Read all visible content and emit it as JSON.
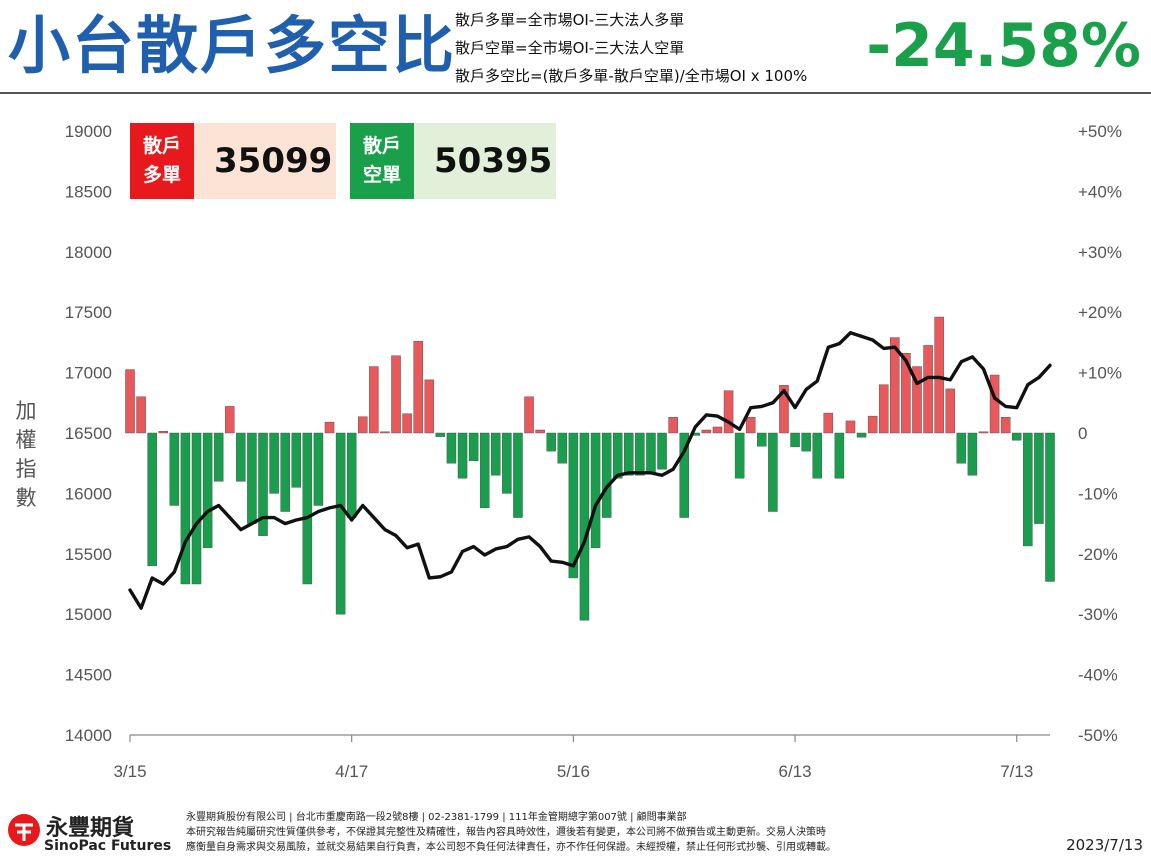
{
  "header": {
    "title": "小台散戶多空比",
    "definitions": [
      "散戶多單=全市場OI-三大法人多單",
      "散戶空單=全市場OI-三大法人空單",
      "散戶多空比=(散戶多單-散戶空單)/全市場OI x 100%"
    ],
    "ratio_value": "-24.58%"
  },
  "summary": {
    "long_label_1": "散戶",
    "long_label_2": "多單",
    "long_value": "35099",
    "short_label_1": "散戶",
    "short_label_2": "空單",
    "short_value": "50395"
  },
  "colors": {
    "title": "#1f5fae",
    "ratio": "#1aa04a",
    "long_tag": "#e8191c",
    "long_bg": "#fbe3d6",
    "short_tag": "#1aa04a",
    "short_bg": "#e2f0d9",
    "bar_positive": "#e8595b",
    "bar_negative": "#1a9e4e",
    "line": "#111111"
  },
  "chart_data": {
    "type": "bar+line",
    "ylabel": "加權指數",
    "x_ticks": [
      "3/15",
      "4/17",
      "5/16",
      "6/13",
      "7/13"
    ],
    "x_tick_index": [
      0,
      20,
      40,
      60,
      80
    ],
    "y_left": {
      "min": 14000,
      "max": 19000,
      "ticks": [
        "19000",
        "18500",
        "18000",
        "17500",
        "17000",
        "16500",
        "16000",
        "15500",
        "15000",
        "14500",
        "14000"
      ]
    },
    "y_right": {
      "min": -50,
      "max": 50,
      "ticks": [
        "+50%",
        "+40%",
        "+30%",
        "+20%",
        "+10%",
        "0",
        "-10%",
        "-20%",
        "-30%",
        "-40%",
        "-50%"
      ]
    },
    "series": [
      {
        "type": "bar",
        "axis": "right",
        "values": [
          10.5,
          6,
          -22,
          0.3,
          -12,
          -25,
          -25,
          -19,
          -8,
          4.4,
          -8,
          -15,
          -17,
          -10,
          -13,
          -9,
          -25,
          -12,
          1.8,
          -30,
          -14,
          2.7,
          11,
          0.2,
          12.8,
          3.2,
          15.2,
          8.8,
          -0.6,
          -5,
          -7.5,
          -4.6,
          -12.4,
          -7,
          -10,
          -14,
          6,
          0.5,
          -3,
          -5,
          -24,
          -31,
          -19,
          -14,
          -7.5,
          -7,
          -7,
          -6.5,
          -6,
          2.6,
          -14,
          -0.4,
          0.5,
          1,
          7,
          -7.5,
          2.6,
          -2.2,
          -13,
          7.9,
          -2.3,
          -3,
          -7.5,
          3.3,
          -7.5,
          2,
          -0.7,
          2.8,
          8,
          15.8,
          13.2,
          11,
          14.5,
          19.2,
          7.3,
          -5,
          -7,
          0.2,
          9.6,
          2.6,
          -1.2,
          -18.7,
          -15,
          -24.58
        ]
      },
      {
        "type": "line",
        "axis": "left",
        "values": [
          15200,
          15050,
          15300,
          15250,
          15350,
          15600,
          15750,
          15850,
          15900,
          15800,
          15700,
          15750,
          15800,
          15800,
          15750,
          15780,
          15800,
          15850,
          15880,
          15900,
          15780,
          15900,
          15800,
          15700,
          15650,
          15550,
          15580,
          15300,
          15310,
          15350,
          15520,
          15560,
          15490,
          15540,
          15560,
          15620,
          15640,
          15560,
          15440,
          15430,
          15400,
          15600,
          15900,
          16050,
          16150,
          16170,
          16170,
          16170,
          16150,
          16200,
          16350,
          16550,
          16650,
          16640,
          16590,
          16530,
          16710,
          16720,
          16750,
          16850,
          16710,
          16860,
          16930,
          17210,
          17240,
          17330,
          17300,
          17270,
          17200,
          17210,
          17100,
          16910,
          16960,
          16960,
          16940,
          17090,
          17130,
          17030,
          16790,
          16720,
          16710,
          16900,
          16960,
          17060
        ]
      }
    ]
  },
  "footer": {
    "brand_cn": "永豐期貨",
    "brand_en": "SinoPac Futures",
    "disclaimer": [
      "永豐期貨股份有限公司 | 台北市重慶南路一段2號8樓 | 02-2381-1799 | 111年金管期總字第007號 | 顧問事業部",
      "本研究報告純屬研究性質僅供參考，不保證其完整性及精確性，報告內容具時效性，邇後若有變更，本公司將不做預告或主動更新。交易人決策時",
      "應衡量自身需求與交易風險，並就交易結果自行負責，本公司恕不負任何法律責任，亦不作任何保證。未經授權，禁止任何形式抄襲、引用或轉載。"
    ],
    "date": "2023/7/13"
  }
}
